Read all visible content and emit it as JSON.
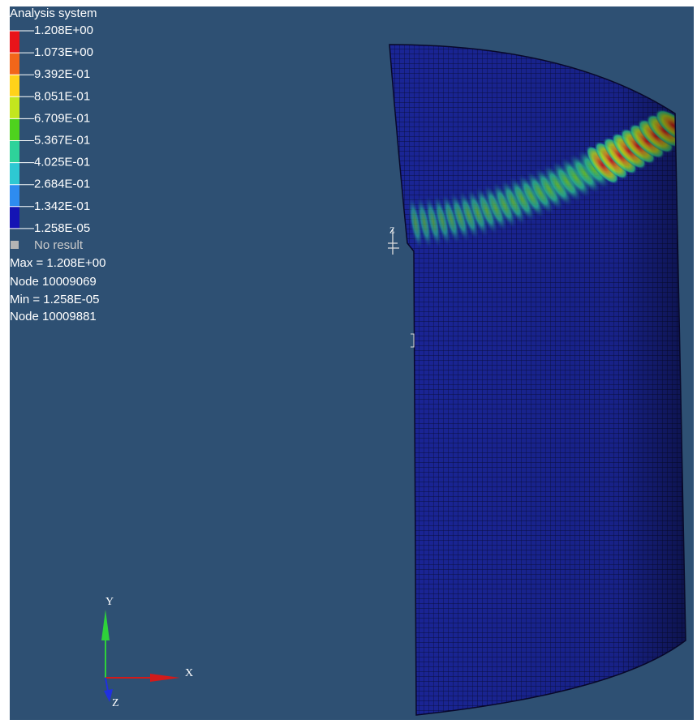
{
  "legend": {
    "title": "Analysis system",
    "levels": [
      "1.208E+00",
      "1.073E+00",
      "9.392E-01",
      "8.051E-01",
      "6.709E-01",
      "5.367E-01",
      "4.025E-01",
      "2.684E-01",
      "1.342E-01",
      "1.258E-05"
    ],
    "band_colors": [
      "#e8141a",
      "#f2661a",
      "#ffd21a",
      "#c3e61e",
      "#4ed21e",
      "#2ed29a",
      "#2ec8d2",
      "#2e8cf0",
      "#1414b4"
    ],
    "no_result": "No result",
    "max": "Max = 1.208E+00",
    "max_node": "Node 10009069",
    "min": "Min = 1.258E-05",
    "min_node": "Node 10009881"
  },
  "triad": {
    "y": "Y",
    "x": "X",
    "z": "Z"
  },
  "model_label": "Z"
}
